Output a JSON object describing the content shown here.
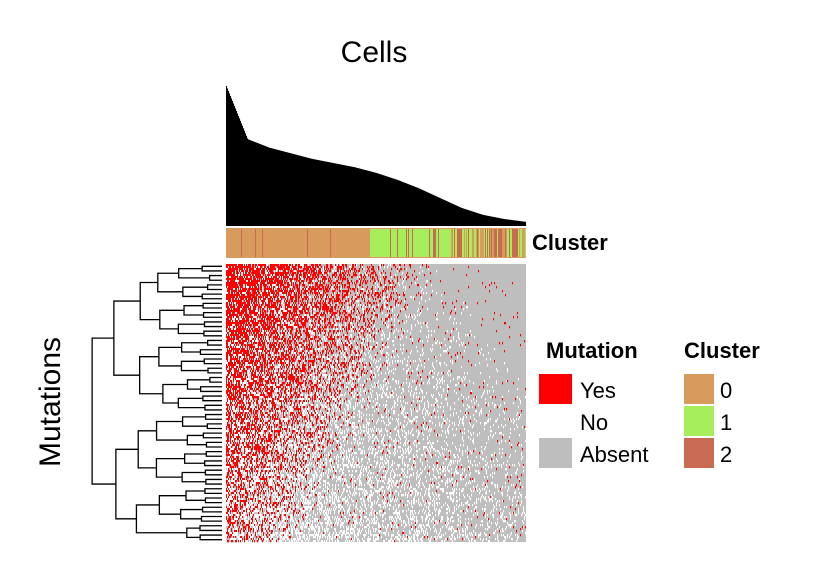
{
  "chart_data": {
    "type": "heatmap",
    "title": "Cells",
    "xlabel": "Cells",
    "ylabel": "Mutations",
    "top_annotation": {
      "label": "Cluster",
      "description": "Cells ordered by cluster; cluster 0 occupies the left portion, cluster 1 the middle, cluster 2 interleaved toward the right",
      "segments": [
        {
          "cluster": "0",
          "fraction": 0.48
        },
        {
          "cluster": "1",
          "fraction": 0.27
        },
        {
          "cluster": "2",
          "fraction": 0.25
        }
      ]
    },
    "column_bars": {
      "description": "Per-cell count of mutations called (bar plot above heatmap), sorted descending",
      "max": 1.0,
      "profile": [
        1.0,
        0.62,
        0.56,
        0.52,
        0.48,
        0.45,
        0.42,
        0.38,
        0.33,
        0.27,
        0.2,
        0.13,
        0.08,
        0.05,
        0.03
      ]
    },
    "legends": [
      {
        "title": "Mutation",
        "items": [
          {
            "label": "Yes",
            "color": "#ff0000"
          },
          {
            "label": "No",
            "color": "#ffffff"
          },
          {
            "label": "Absent",
            "color": "#bebebe"
          }
        ]
      },
      {
        "title": "Cluster",
        "items": [
          {
            "label": "0",
            "color": "#d99a5e"
          },
          {
            "label": "1",
            "color": "#a6ee5c"
          },
          {
            "label": "2",
            "color": "#c86b52"
          }
        ]
      }
    ],
    "grid": false,
    "legend_position": "right",
    "row_dendrogram": true
  }
}
